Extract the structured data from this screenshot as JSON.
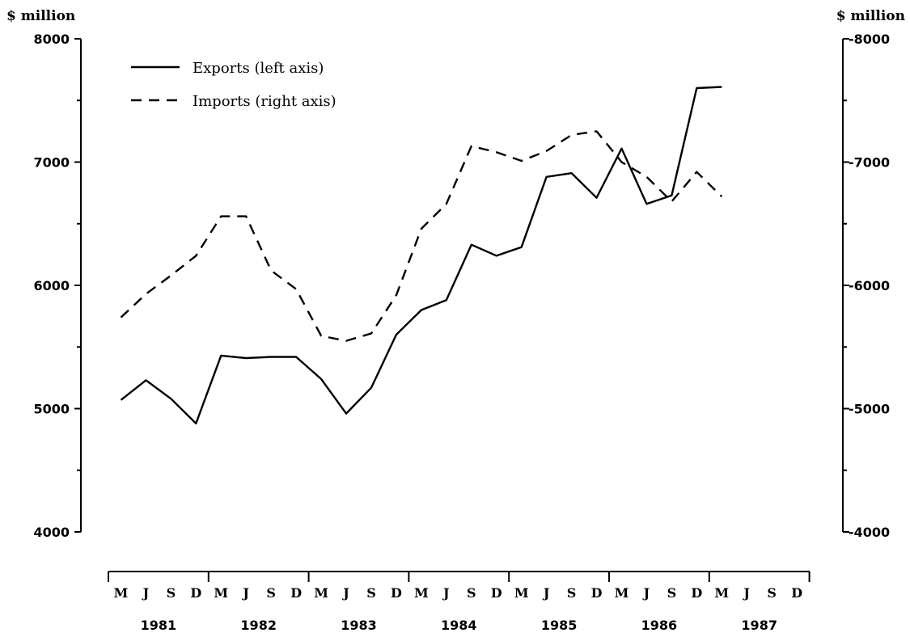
{
  "chart_data": {
    "type": "line",
    "y_left_label": "$ million",
    "y_right_label": "$ million",
    "y_left_range": [
      4000,
      8000
    ],
    "y_right_range": [
      -4000,
      -8000
    ],
    "y_left_ticks": [
      "4000",
      "5000",
      "6000",
      "7000",
      "8000"
    ],
    "y_right_ticks": [
      "-4000",
      "-5000",
      "-6000",
      "-7000",
      "-8000"
    ],
    "x_month_ticks": [
      "M",
      "J",
      "S",
      "D",
      "M",
      "J",
      "S",
      "D",
      "M",
      "J",
      "S",
      "D",
      "M",
      "J",
      "S",
      "D",
      "M",
      "J",
      "S",
      "D",
      "M",
      "J",
      "S",
      "D",
      "M",
      "J",
      "S",
      "D"
    ],
    "x_year_labels": [
      "1981",
      "1982",
      "1983",
      "1984",
      "1985",
      "1986",
      "1987"
    ],
    "legend_placement": "top-left",
    "grid": false,
    "series": [
      {
        "name": "Exports (left axis)",
        "axis": "left",
        "style": "solid",
        "x": [
          "1981-M",
          "1981-J",
          "1981-S",
          "1981-D",
          "1982-M",
          "1982-J",
          "1982-S",
          "1982-D",
          "1983-M",
          "1983-J",
          "1983-S",
          "1983-D",
          "1984-M",
          "1984-J",
          "1984-S",
          "1984-D",
          "1985-M",
          "1985-J",
          "1985-S",
          "1985-D",
          "1986-M",
          "1986-J",
          "1986-S",
          "1986-D",
          "1987-M"
        ],
        "values": [
          5070,
          5230,
          5080,
          4880,
          5430,
          5410,
          5420,
          5420,
          5240,
          4960,
          5170,
          5600,
          5800,
          5880,
          6330,
          6240,
          6310,
          6880,
          6910,
          6710,
          7110,
          6660,
          6730,
          7600,
          7610
        ]
      },
      {
        "name": "Imports (right axis)",
        "axis": "right",
        "style": "dashed",
        "x": [
          "1981-M",
          "1981-J",
          "1981-S",
          "1981-D",
          "1982-M",
          "1982-J",
          "1982-S",
          "1982-D",
          "1983-M",
          "1983-J",
          "1983-S",
          "1983-D",
          "1984-M",
          "1984-J",
          "1984-S",
          "1984-D",
          "1985-M",
          "1985-J",
          "1985-S",
          "1985-D",
          "1986-M",
          "1986-J",
          "1986-S",
          "1986-D",
          "1987-M"
        ],
        "values": [
          -5740,
          -5930,
          -6080,
          -6240,
          -6560,
          -6560,
          -6120,
          -5970,
          -5590,
          -5550,
          -5610,
          -5920,
          -6460,
          -6660,
          -7130,
          -7080,
          -7010,
          -7090,
          -7220,
          -7250,
          -7000,
          -6880,
          -6680,
          -6920,
          -6720
        ]
      }
    ]
  }
}
